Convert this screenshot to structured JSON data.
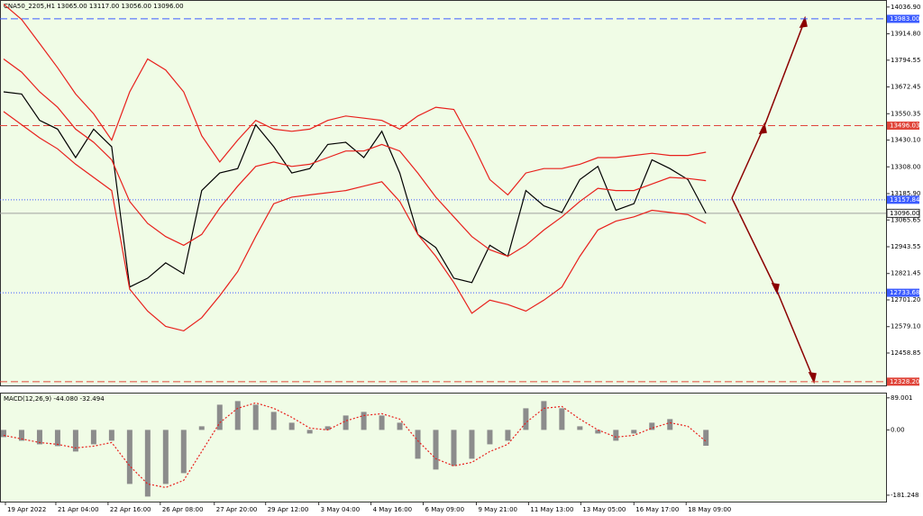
{
  "chart_data": [
    {
      "type": "line",
      "title": "CNA50_2205,H1  13065.00 13117.00 13056.00 13096.00",
      "x": [
        0,
        1,
        2,
        3,
        4,
        5,
        6,
        7,
        8,
        9,
        10,
        11,
        12,
        13,
        14,
        15,
        16,
        17,
        18,
        19,
        20,
        21,
        22,
        23,
        24,
        25,
        26,
        27,
        28,
        29,
        30,
        31,
        32,
        33,
        34,
        35,
        36,
        37,
        38,
        39
      ],
      "xlim": [
        -0.1,
        49
      ],
      "ylim": [
        12311,
        14069
      ],
      "yticks": [
        {
          "value": 14036.9,
          "label": "14036.90"
        },
        {
          "value": 13914.8,
          "label": "13914.80"
        },
        {
          "value": 13794.55,
          "label": "13794.55"
        },
        {
          "value": 13672.45,
          "label": "13672.45"
        },
        {
          "value": 13550.35,
          "label": "13550.35"
        },
        {
          "value": 13430.1,
          "label": "13430.10"
        },
        {
          "value": 13308,
          "label": "13308.00"
        },
        {
          "value": 13185.9,
          "label": "13185.90"
        },
        {
          "value": 13065.65,
          "label": "13065.65"
        },
        {
          "value": 12943.55,
          "label": "12943.55"
        },
        {
          "value": 12821.45,
          "label": "12821.45"
        },
        {
          "value": 12701.2,
          "label": "12701.20"
        },
        {
          "value": 12579.1,
          "label": "12579.10"
        },
        {
          "value": 12458.85,
          "label": "12458.85"
        }
      ],
      "levels": [
        {
          "value": 13983,
          "label": "13983.00",
          "color": "#3c5cff",
          "style": "dashed"
        },
        {
          "value": 13496.03,
          "label": "13496.03",
          "color": "#e0453a",
          "style": "dashed"
        },
        {
          "value": 13157.84,
          "label": "13157.84",
          "color": "#3c5cff",
          "style": "dotted"
        },
        {
          "value": 13096,
          "label": "13096.00",
          "color": "#a0a0a0",
          "style": "solid"
        },
        {
          "value": 12733.68,
          "label": "12733.68",
          "color": "#3c5cff",
          "style": "dotted"
        },
        {
          "value": 12328.2,
          "label": "12328.20",
          "color": "#e0453a",
          "style": "dashed"
        }
      ],
      "series": [
        {
          "color": "#000000",
          "values": [
            13650,
            13640,
            13520,
            13480,
            13350,
            13480,
            13400,
            12760,
            12800,
            12870,
            12820,
            13200,
            13280,
            13300,
            13500,
            13400,
            13280,
            13300,
            13410,
            13420,
            13350,
            13470,
            13280,
            13000,
            12940,
            12800,
            12780,
            12950,
            12900,
            13200,
            13130,
            13100,
            13250,
            13310,
            13110,
            13140,
            13340,
            13300,
            13250,
            13096
          ]
        },
        {
          "color": "#e8201c",
          "values": [
            14050,
            13980,
            13870,
            13760,
            13640,
            13550,
            13430,
            13650,
            13800,
            13750,
            13650,
            13450,
            13330,
            13430,
            13520,
            13480,
            13470,
            13480,
            13520,
            13540,
            13530,
            13520,
            13480,
            13540,
            13580,
            13570,
            13420,
            13250,
            13180,
            13280,
            13300,
            13300,
            13320,
            13350,
            13350,
            13360,
            13370,
            13360,
            13360,
            13375
          ]
        },
        {
          "color": "#e8201c",
          "values": [
            13800,
            13740,
            13650,
            13580,
            13480,
            13420,
            13340,
            13150,
            13050,
            12990,
            12950,
            13000,
            13120,
            13220,
            13310,
            13330,
            13310,
            13320,
            13350,
            13380,
            13380,
            13410,
            13380,
            13280,
            13170,
            13080,
            12990,
            12930,
            12900,
            12950,
            13020,
            13080,
            13150,
            13210,
            13200,
            13200,
            13230,
            13260,
            13255,
            13245
          ]
        },
        {
          "color": "#e8201c",
          "values": [
            13560,
            13500,
            13440,
            13390,
            13320,
            13260,
            13200,
            12750,
            12650,
            12580,
            12560,
            12620,
            12720,
            12830,
            12990,
            13140,
            13170,
            13180,
            13190,
            13200,
            13220,
            13240,
            13150,
            13000,
            12900,
            12780,
            12640,
            12700,
            12680,
            12650,
            12700,
            12760,
            12900,
            13020,
            13060,
            13080,
            13110,
            13100,
            13090,
            13050
          ]
        }
      ]
    },
    {
      "type": "bar",
      "title": "MACD(12,26,9) -44.080 -32.494",
      "x": [
        0,
        1,
        2,
        3,
        4,
        5,
        6,
        7,
        8,
        9,
        10,
        11,
        12,
        13,
        14,
        15,
        16,
        17,
        18,
        19,
        20,
        21,
        22,
        23,
        24,
        25,
        26,
        27,
        28,
        29,
        30,
        31,
        32,
        33,
        34,
        35,
        36,
        37,
        38,
        39
      ],
      "xlim": [
        -0.1,
        49
      ],
      "ylim": [
        -199,
        101
      ],
      "yticks": [
        89.001,
        {
          "value": 0,
          "label": "0.00"
        },
        -181.248
      ],
      "xticks": [
        {
          "value": 0.1,
          "label": "19 Apr 2022"
        },
        {
          "value": 2.9,
          "label": "21 Apr 04:00"
        },
        {
          "value": 5.8,
          "label": "22 Apr 16:00"
        },
        {
          "value": 8.7,
          "label": "26 Apr 08:00"
        },
        {
          "value": 11.7,
          "label": "27 Apr 20:00"
        },
        {
          "value": 14.55,
          "label": "29 Apr 12:00"
        },
        {
          "value": 17.5,
          "label": "3 May 04:00"
        },
        {
          "value": 20.4,
          "label": "4 May 16:00"
        },
        {
          "value": 23.3,
          "label": "6 May 09:00"
        },
        {
          "value": 26.25,
          "label": "9 May 21:00"
        },
        {
          "value": 29.15,
          "label": "11 May 13:00"
        },
        {
          "value": 32.05,
          "label": "13 May 05:00"
        },
        {
          "value": 35,
          "label": "16 May 17:00"
        },
        {
          "value": 37.9,
          "label": "18 May 09:00"
        }
      ],
      "series": [
        {
          "color": "#8c8c8c",
          "values": [
            -20,
            -30,
            -40,
            -45,
            -60,
            -40,
            -30,
            -150,
            -185,
            -150,
            -120,
            10,
            70,
            80,
            70,
            50,
            20,
            -10,
            10,
            40,
            50,
            40,
            20,
            -80,
            -110,
            -100,
            -80,
            -40,
            -30,
            60,
            80,
            60,
            10,
            -10,
            -30,
            -10,
            20,
            30,
            0,
            -44
          ]
        },
        {
          "color": "#e8201c",
          "values": [
            -15,
            -25,
            -35,
            -40,
            -50,
            -45,
            -35,
            -100,
            -150,
            -160,
            -140,
            -60,
            20,
            60,
            75,
            60,
            35,
            5,
            0,
            25,
            40,
            45,
            30,
            -30,
            -80,
            -100,
            -90,
            -60,
            -40,
            20,
            60,
            65,
            30,
            0,
            -20,
            -15,
            5,
            20,
            10,
            -32
          ]
        }
      ]
    }
  ]
}
